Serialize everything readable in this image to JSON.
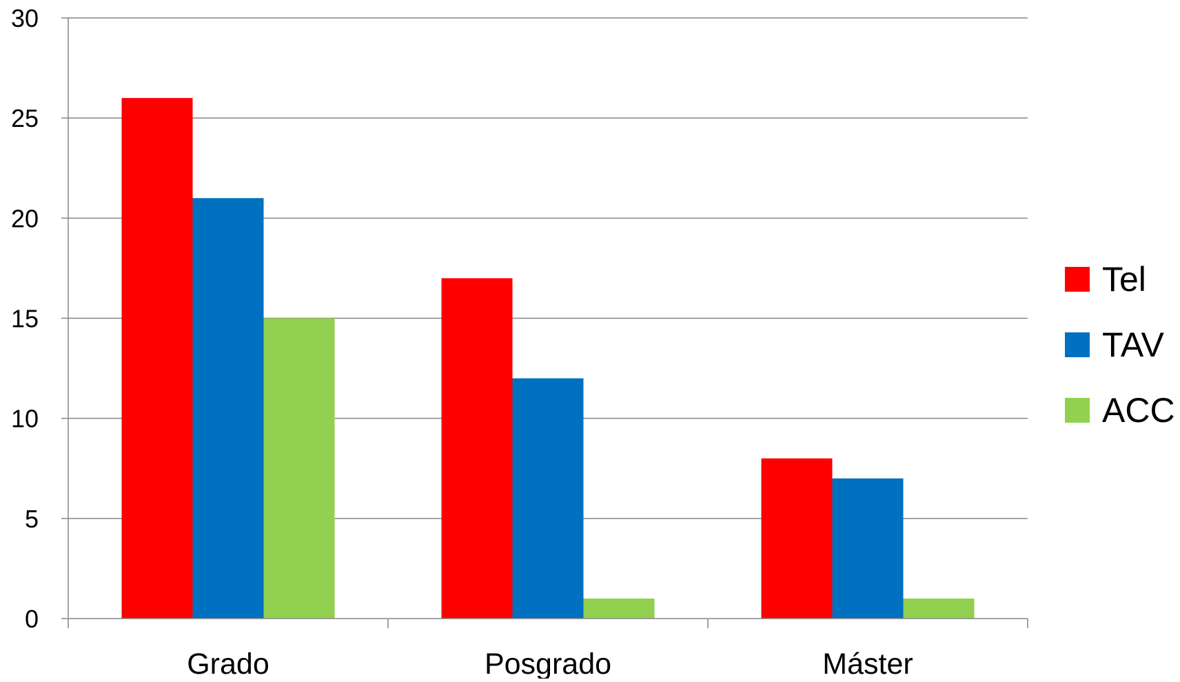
{
  "chart_data": {
    "type": "bar",
    "title": "",
    "xlabel": "",
    "ylabel": "",
    "categories": [
      "Grado",
      "Posgrado",
      "Máster"
    ],
    "series": [
      {
        "name": "Tel",
        "values": [
          26,
          17,
          8
        ],
        "color": "#ff0000"
      },
      {
        "name": "TAV",
        "values": [
          21,
          12,
          7
        ],
        "color": "#0070c0"
      },
      {
        "name": "ACC",
        "values": [
          15,
          1,
          1
        ],
        "color": "#92d050"
      }
    ],
    "ylim": [
      0,
      30
    ],
    "yticks": [
      "0",
      "5",
      "10",
      "15",
      "20",
      "25",
      "30"
    ],
    "grid": true,
    "legend_position": "right"
  }
}
